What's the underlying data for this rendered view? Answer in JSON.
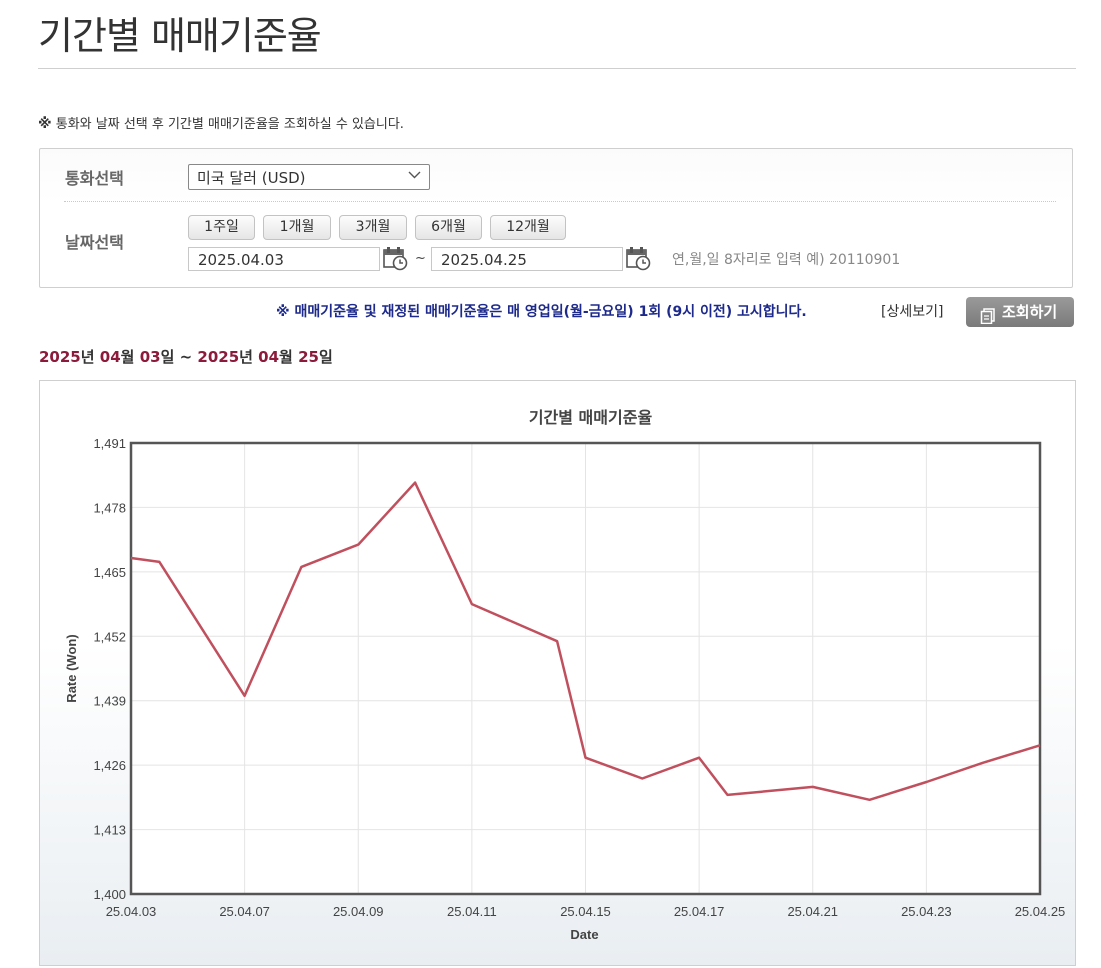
{
  "header": {
    "title": "기간별 매매기준율"
  },
  "notice": {
    "mark": "※",
    "text": "통화와 날짜 선택 후 기간별 매매기준율을 조회하실 수 있습니다."
  },
  "form": {
    "currency_label": "통화선택",
    "currency_selected": "미국 달러 (USD)",
    "date_label": "날짜선택",
    "period_buttons": [
      "1주일",
      "1개월",
      "3개월",
      "6개월",
      "12개월"
    ],
    "start_date": "2025.04.03",
    "tilde": "~",
    "end_date": "2025.04.25",
    "hint": "연,월,일 8자리로 입력 예) 20110901"
  },
  "bottom_notice": "※ 매매기준율 및 재정된 매매기준율은 매 영업일(월-금요일) 1회 (9시 이전) 고시합니다.",
  "detail_link": "[상세보기]",
  "query_button": "조회하기",
  "range": {
    "y1": "2025",
    "y_suffix": "년 ",
    "m1": "04",
    "m_suffix": "월 ",
    "d1": "03",
    "d_suffix": "일",
    "sep": " ~ ",
    "y2": "2025",
    "m2": "04",
    "d2": "25"
  },
  "colors": {
    "line": "#c0505e",
    "range_num": "#8c1a3a",
    "notice_blue": "#1d2a8c"
  },
  "chart_data": {
    "type": "line",
    "title": "기간별 매매기준율",
    "xlabel": "Date",
    "ylabel": "Rate (Won)",
    "ylim": [
      1400,
      1491
    ],
    "yticks": [
      1400,
      1413,
      1426,
      1439,
      1452,
      1465,
      1478,
      1491
    ],
    "ytick_labels": [
      "1,400",
      "1,413",
      "1,426",
      "1,439",
      "1,452",
      "1,465",
      "1,478",
      "1,491"
    ],
    "xticks": [
      "25.04.03",
      "25.04.07",
      "25.04.09",
      "25.04.11",
      "25.04.15",
      "25.04.17",
      "25.04.21",
      "25.04.23",
      "25.04.25"
    ],
    "grid": true,
    "series": [
      {
        "x": [
          "25.04.03",
          "25.04.04",
          "25.04.07",
          "25.04.08",
          "25.04.09",
          "25.04.10",
          "25.04.11",
          "25.04.14",
          "25.04.15",
          "25.04.16",
          "25.04.17",
          "25.04.18",
          "25.04.21",
          "25.04.22",
          "25.04.23",
          "25.04.24",
          "25.04.25"
        ],
        "values": [
          1467.8,
          1467.0,
          1440.0,
          1466.0,
          1470.5,
          1483.0,
          1458.5,
          1451.0,
          1427.5,
          1423.3,
          1427.5,
          1420.0,
          1421.6,
          1419.0,
          1422.6,
          1426.5,
          1430.0
        ]
      }
    ]
  }
}
